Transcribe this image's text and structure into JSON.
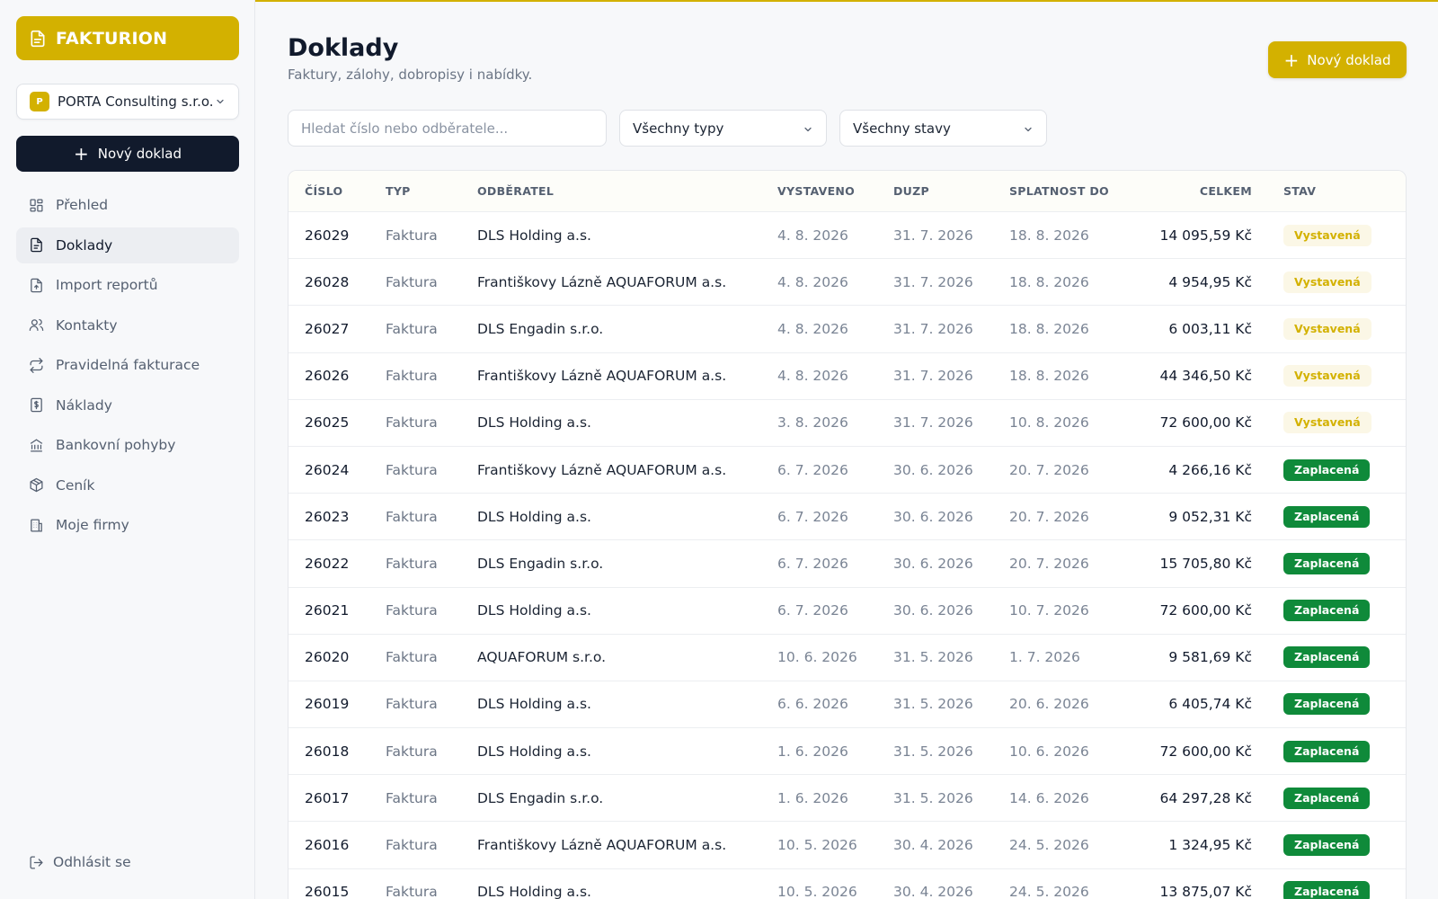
{
  "app": {
    "brand": "FAKTURION",
    "company": "PORTA Consulting s.r.o.",
    "company_initial": "P",
    "new_doc_label": "Nový doklad",
    "accent_color": "#d3b100",
    "dark_color": "#111a2c"
  },
  "nav": [
    {
      "label": "Přehled",
      "icon": "dashboard-icon"
    },
    {
      "label": "Doklady",
      "icon": "document-icon",
      "active": true
    },
    {
      "label": "Import reportů",
      "icon": "file-import-icon"
    },
    {
      "label": "Kontakty",
      "icon": "users-icon"
    },
    {
      "label": "Pravidelná fakturace",
      "icon": "repeat-icon"
    },
    {
      "label": "Náklady",
      "icon": "receipt-icon"
    },
    {
      "label": "Bankovní pohyby",
      "icon": "bank-icon"
    },
    {
      "label": "Ceník",
      "icon": "package-icon"
    },
    {
      "label": "Moje firmy",
      "icon": "building-icon"
    }
  ],
  "logout_label": "Odhlásit se",
  "page": {
    "title": "Doklady",
    "subtitle": "Faktury, zálohy, dobropisy i nabídky.",
    "new_doc_label": "Nový doklad"
  },
  "filters": {
    "search_placeholder": "Hledat číslo nebo odběratele...",
    "type_value": "Všechny typy",
    "state_value": "Všechny stavy"
  },
  "table": {
    "headers": [
      "ČÍSLO",
      "TYP",
      "ODBĚRATEL",
      "VYSTAVENO",
      "DUZP",
      "SPLATNOST DO",
      "CELKEM",
      "STAV"
    ],
    "rows": [
      {
        "number": "26029",
        "type": "Faktura",
        "customer": "DLS Holding a.s.",
        "issued": "4. 8. 2026",
        "duzp": "31. 7. 2026",
        "due": "18. 8. 2026",
        "total": "14 095,59 Kč",
        "status": "Vystavená",
        "status_kind": "issued"
      },
      {
        "number": "26028",
        "type": "Faktura",
        "customer": "Františkovy Lázně AQUAFORUM a.s.",
        "issued": "4. 8. 2026",
        "duzp": "31. 7. 2026",
        "due": "18. 8. 2026",
        "total": "4 954,95 Kč",
        "status": "Vystavená",
        "status_kind": "issued"
      },
      {
        "number": "26027",
        "type": "Faktura",
        "customer": "DLS Engadin s.r.o.",
        "issued": "4. 8. 2026",
        "duzp": "31. 7. 2026",
        "due": "18. 8. 2026",
        "total": "6 003,11 Kč",
        "status": "Vystavená",
        "status_kind": "issued"
      },
      {
        "number": "26026",
        "type": "Faktura",
        "customer": "Františkovy Lázně AQUAFORUM a.s.",
        "issued": "4. 8. 2026",
        "duzp": "31. 7. 2026",
        "due": "18. 8. 2026",
        "total": "44 346,50 Kč",
        "status": "Vystavená",
        "status_kind": "issued"
      },
      {
        "number": "26025",
        "type": "Faktura",
        "customer": "DLS Holding a.s.",
        "issued": "3. 8. 2026",
        "duzp": "31. 7. 2026",
        "due": "10. 8. 2026",
        "total": "72 600,00 Kč",
        "status": "Vystavená",
        "status_kind": "issued"
      },
      {
        "number": "26024",
        "type": "Faktura",
        "customer": "Františkovy Lázně AQUAFORUM a.s.",
        "issued": "6. 7. 2026",
        "duzp": "30. 6. 2026",
        "due": "20. 7. 2026",
        "total": "4 266,16 Kč",
        "status": "Zaplacená",
        "status_kind": "paid"
      },
      {
        "number": "26023",
        "type": "Faktura",
        "customer": "DLS Holding a.s.",
        "issued": "6. 7. 2026",
        "duzp": "30. 6. 2026",
        "due": "20. 7. 2026",
        "total": "9 052,31 Kč",
        "status": "Zaplacená",
        "status_kind": "paid"
      },
      {
        "number": "26022",
        "type": "Faktura",
        "customer": "DLS Engadin s.r.o.",
        "issued": "6. 7. 2026",
        "duzp": "30. 6. 2026",
        "due": "20. 7. 2026",
        "total": "15 705,80 Kč",
        "status": "Zaplacená",
        "status_kind": "paid"
      },
      {
        "number": "26021",
        "type": "Faktura",
        "customer": "DLS Holding a.s.",
        "issued": "6. 7. 2026",
        "duzp": "30. 6. 2026",
        "due": "10. 7. 2026",
        "total": "72 600,00 Kč",
        "status": "Zaplacená",
        "status_kind": "paid"
      },
      {
        "number": "26020",
        "type": "Faktura",
        "customer": "AQUAFORUM s.r.o.",
        "issued": "10. 6. 2026",
        "duzp": "31. 5. 2026",
        "due": "1. 7. 2026",
        "total": "9 581,69 Kč",
        "status": "Zaplacená",
        "status_kind": "paid"
      },
      {
        "number": "26019",
        "type": "Faktura",
        "customer": "DLS Holding a.s.",
        "issued": "6. 6. 2026",
        "duzp": "31. 5. 2026",
        "due": "20. 6. 2026",
        "total": "6 405,74 Kč",
        "status": "Zaplacená",
        "status_kind": "paid"
      },
      {
        "number": "26018",
        "type": "Faktura",
        "customer": "DLS Holding a.s.",
        "issued": "1. 6. 2026",
        "duzp": "31. 5. 2026",
        "due": "10. 6. 2026",
        "total": "72 600,00 Kč",
        "status": "Zaplacená",
        "status_kind": "paid"
      },
      {
        "number": "26017",
        "type": "Faktura",
        "customer": "DLS Engadin s.r.o.",
        "issued": "1. 6. 2026",
        "duzp": "31. 5. 2026",
        "due": "14. 6. 2026",
        "total": "64 297,28 Kč",
        "status": "Zaplacená",
        "status_kind": "paid"
      },
      {
        "number": "26016",
        "type": "Faktura",
        "customer": "Františkovy Lázně AQUAFORUM a.s.",
        "issued": "10. 5. 2026",
        "duzp": "30. 4. 2026",
        "due": "24. 5. 2026",
        "total": "1 324,95 Kč",
        "status": "Zaplacená",
        "status_kind": "paid"
      },
      {
        "number": "26015",
        "type": "Faktura",
        "customer": "DLS Holding a.s.",
        "issued": "10. 5. 2026",
        "duzp": "30. 4. 2026",
        "due": "24. 5. 2026",
        "total": "13 875,07 Kč",
        "status": "Zaplacená",
        "status_kind": "paid"
      }
    ]
  }
}
